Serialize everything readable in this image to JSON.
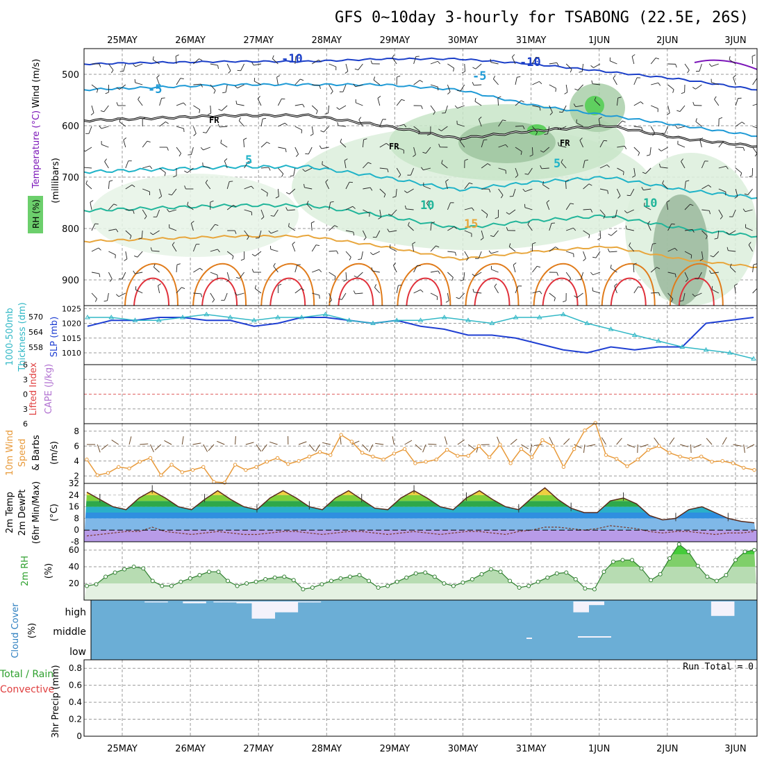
{
  "title": "GFS 0~10day 3-hourly for TSABONG (22.5E, 26S)",
  "dates": [
    "25MAY",
    "26MAY",
    "27MAY",
    "28MAY",
    "29MAY",
    "30MAY",
    "31MAY",
    "1JUN",
    "2JUN",
    "3JUN"
  ],
  "colors": {
    "frame": "#000000",
    "grid": "#9a9a9a",
    "rh_green": "#8fd18f",
    "rh_dark": "#6f8f75",
    "temp_red": "#e0303a",
    "temp_orange": "#e07b1a",
    "temp_yellow": "#e8a63c",
    "temp_teal": "#21b59a",
    "temp_cyan": "#1fb3c8",
    "temp_blue": "#1e9ad6",
    "temp_navy": "#1b3fc8",
    "temp_purple": "#7a14b8",
    "slp_line": "#1f3fd2",
    "thick_line": "#32b8c6",
    "wind_line": "#e89a3a",
    "cloud_fill": "#6baed6",
    "rh_line": "#2f7f2f"
  },
  "labels": {
    "upper_y1": "Wind (m/s)",
    "upper_y2": "Temperature (°C)",
    "upper_y3": "(millibars)",
    "upper_y4": "RH (%)",
    "thick_y1": "1000-500mb",
    "thick_y2": "Thickness (dm)",
    "slp_y": "SLP (mb)",
    "li_y1": "Lifted Index",
    "li_y2": "CAPE (J/kg)",
    "wind10_y1": "10m Wind",
    "wind10_y2": "Speed",
    "wind10_y3": "& Barbs",
    "wind10_y4": "(m/s)",
    "temp_y1": "2m Temp",
    "temp_y2": "2m DewPt",
    "temp_y3": "(6hr Min/Max)",
    "temp_y4": "(°C)",
    "rh_y1": "2m RH",
    "rh_y2": "(%)",
    "cloud_y1": "Cloud Cover",
    "cloud_y2": "(%)",
    "cloud_high": "high",
    "cloud_middle": "middle",
    "cloud_low": "low",
    "precip_y1": "Total / Rain",
    "precip_y2": "Convective",
    "precip_y3": "3hr Precip (mm)",
    "run_total": "Run Total = 0",
    "contour_fr": "FR",
    "contour_m10": "-10",
    "contour_m5": "-5",
    "contour_5": "5",
    "contour_10": "10",
    "contour_15": "15"
  },
  "chart_data": [
    {
      "type": "area",
      "name": "vertical cross-section",
      "y_axis_ticks_mb": [
        500,
        600,
        700,
        800,
        900
      ],
      "ylim_mb": [
        450,
        950
      ],
      "contour_labels": [
        "-10",
        "-5",
        "FR",
        "5",
        "10",
        "15"
      ],
      "freezing_level_mb": [
        590,
        585,
        580,
        580,
        600,
        625,
        610,
        600,
        625,
        640
      ],
      "minus10_level_mb": [
        480,
        477,
        475,
        475,
        470,
        470,
        480,
        495,
        510,
        530
      ],
      "minus5_level_mb": [
        530,
        525,
        520,
        520,
        520,
        530,
        560,
        580,
        600,
        620
      ]
    },
    {
      "type": "line",
      "name": "thickness and slp",
      "thickness_ticks_dm": [
        558,
        564,
        570
      ],
      "slp_ticks_mb": [
        1010,
        1015,
        1020,
        1025
      ],
      "series": [
        {
          "name": "SLP",
          "values": [
            1019,
            1021,
            1021,
            1022,
            1022,
            1021,
            1021,
            1019,
            1020,
            1022,
            1022,
            1021,
            1020,
            1021,
            1019,
            1018,
            1016,
            1016,
            1015,
            1013,
            1011,
            1010,
            1012,
            1011,
            1012,
            1012,
            1020,
            1021,
            1022
          ]
        },
        {
          "name": "Thickness",
          "values": [
            1022,
            1022,
            1021,
            1021,
            1022,
            1023,
            1022,
            1021,
            1022,
            1022,
            1023,
            1021,
            1020,
            1021,
            1021,
            1022,
            1021,
            1020,
            1022,
            1022,
            1023,
            1020,
            1018,
            1016,
            1014,
            1012,
            1011,
            1010,
            1008
          ]
        }
      ]
    },
    {
      "type": "line",
      "name": "lifted index and cape",
      "y_ticks": [
        "6",
        "3",
        "0",
        "3",
        "6"
      ],
      "ylim": [
        -6,
        6
      ],
      "values": [
        0
      ]
    },
    {
      "type": "line",
      "name": "10m wind speed",
      "y_ticks": [
        2,
        4,
        6,
        8
      ],
      "ylim": [
        1,
        9
      ],
      "values": [
        4.2,
        2.1,
        2.4,
        3.2,
        3.0,
        3.9,
        4.4,
        2.1,
        3.5,
        2.5,
        2.8,
        3.2,
        1.2,
        1.1,
        3.5,
        2.8,
        3.2,
        3.9,
        4.4,
        3.6,
        4.0,
        4.6,
        5.2,
        4.8,
        7.5,
        6.6,
        5.1,
        4.6,
        4.2,
        5.0,
        5.6,
        3.7,
        3.9,
        4.2,
        5.5,
        4.7,
        4.7,
        6.0,
        4.5,
        6.2,
        3.7,
        5.6,
        4.5,
        6.8,
        6.0,
        3.2,
        5.6,
        8.1,
        9.1,
        4.8,
        4.3,
        3.3,
        4.2,
        5.5,
        6.0,
        5.1,
        4.6,
        4.3,
        4.6,
        3.9,
        4.0,
        3.7,
        3.1,
        2.8
      ]
    },
    {
      "type": "area",
      "name": "2m temp and dewpoint",
      "y_ticks": [
        -8,
        0,
        8,
        16,
        24,
        32
      ],
      "ylim": [
        -8,
        32
      ],
      "temp_values": [
        26,
        21,
        16,
        14,
        22,
        27,
        22,
        16,
        14,
        21,
        27,
        21,
        16,
        14,
        22,
        27,
        22,
        16,
        14,
        22,
        27,
        21,
        15,
        14,
        22,
        27,
        22,
        16,
        14,
        22,
        27,
        21,
        16,
        14,
        22,
        29,
        21,
        15,
        12,
        12,
        20,
        22,
        18,
        10,
        7,
        8,
        14,
        16,
        12,
        8,
        6,
        5
      ],
      "dewpoint_values": [
        -4,
        -3,
        -2,
        -1,
        -1,
        2,
        -1,
        -2,
        -3,
        -2,
        -1,
        -2,
        -3,
        -3,
        -2,
        -1,
        -1,
        -2,
        -3,
        -2,
        -1,
        -1,
        -2,
        -3,
        -2,
        -1,
        -2,
        -3,
        -2,
        -1,
        -1,
        -2,
        -3,
        -1,
        0,
        2,
        2,
        1,
        0,
        1,
        3,
        2,
        1,
        -1,
        -2,
        -1,
        -1,
        -2,
        -3,
        -2,
        -2,
        -1
      ]
    },
    {
      "type": "area",
      "name": "2m relative humidity",
      "y_ticks": [
        20,
        40,
        60
      ],
      "ylim": [
        0,
        70
      ],
      "values": [
        17,
        19,
        28,
        33,
        37,
        40,
        38,
        23,
        17,
        17,
        22,
        26,
        30,
        34,
        34,
        23,
        17,
        20,
        22,
        25,
        27,
        28,
        24,
        13,
        15,
        19,
        23,
        26,
        28,
        30,
        23,
        15,
        17,
        22,
        27,
        32,
        33,
        28,
        20,
        17,
        21,
        25,
        31,
        37,
        34,
        23,
        15,
        17,
        22,
        27,
        32,
        33,
        25,
        14,
        13,
        34,
        46,
        48,
        48,
        38,
        24,
        31,
        50,
        67,
        58,
        41,
        28,
        23,
        30,
        48,
        58,
        60
      ]
    },
    {
      "type": "bar",
      "name": "cloud cover",
      "categories": [
        "high",
        "middle",
        "low"
      ],
      "high_cloud_values": [
        0,
        0,
        0,
        0,
        0,
        0,
        0,
        5,
        5,
        5,
        0,
        0,
        10,
        10,
        10,
        0,
        5,
        5,
        5,
        10,
        10,
        95,
        95,
        95,
        60,
        60,
        60,
        5,
        5,
        5,
        0,
        0,
        0,
        0,
        0,
        0,
        0,
        0,
        0,
        0,
        0,
        0,
        0,
        0,
        0,
        0,
        0,
        0,
        0,
        0,
        0,
        0,
        0,
        0,
        0,
        0,
        0,
        0,
        0,
        0,
        0,
        0,
        0,
        60,
        60,
        20,
        20,
        0,
        0,
        0,
        0,
        0,
        0,
        0,
        0,
        0,
        0,
        0,
        0,
        0,
        0,
        80,
        80,
        80,
        0,
        0,
        0
      ]
    },
    {
      "type": "bar",
      "name": "3hr precip",
      "y_ticks": [
        0,
        0.2,
        0.4,
        0.6,
        0.8
      ],
      "ylim": [
        0,
        0.9
      ],
      "values": [
        0
      ]
    }
  ]
}
